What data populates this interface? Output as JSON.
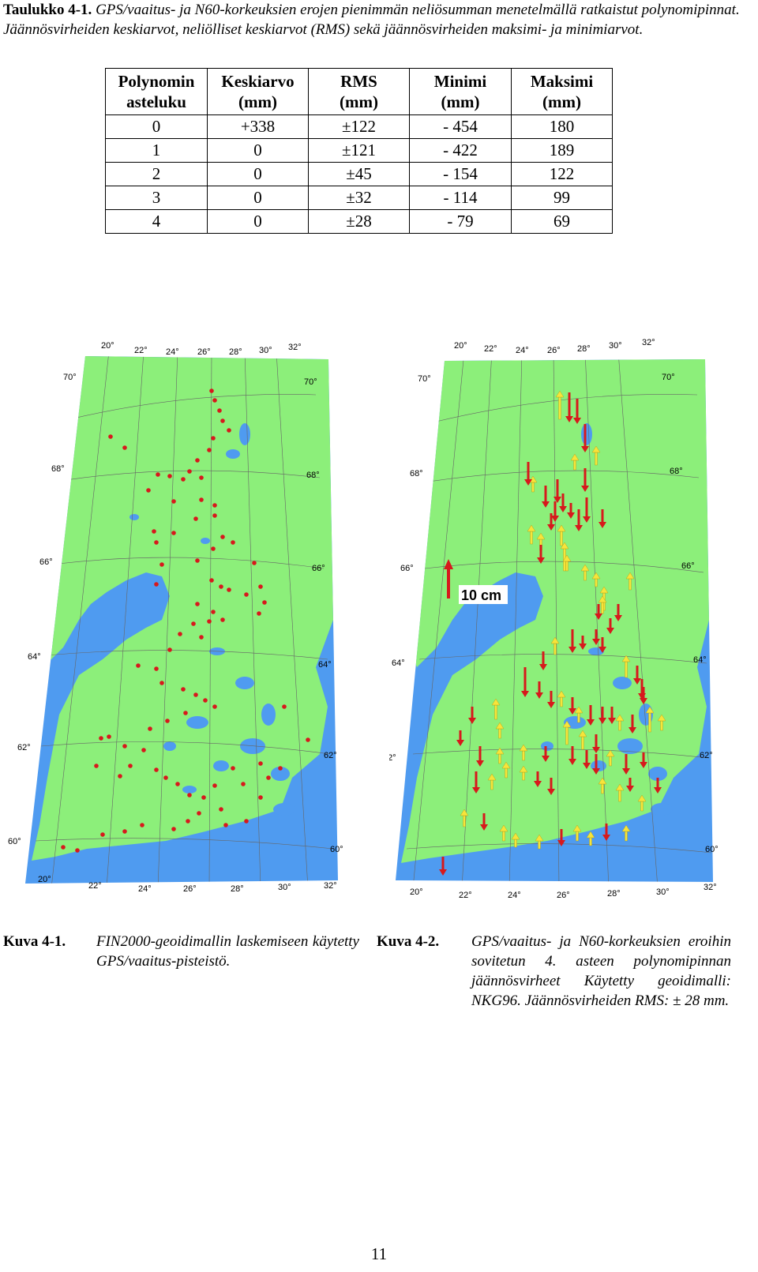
{
  "table_caption": {
    "label": "Taulukko 4-1.",
    "text": "GPS/vaaitus- ja N60-korkeuksien erojen pienimmän neliösumman menetelmällä ratkaistut polynomipinnat. Jäännösvirheiden keskiarvot, neliölliset keskiarvot (RMS) sekä jäännösvirheiden maksimi- ja minimiarvot."
  },
  "table": {
    "headers": [
      [
        "Polynomin",
        "asteluku"
      ],
      [
        "Keskiarvo",
        "(mm)"
      ],
      [
        "RMS",
        "(mm)"
      ],
      [
        "Minimi",
        "(mm)"
      ],
      [
        "Maksimi",
        "(mm)"
      ]
    ],
    "rows": [
      [
        "0",
        "+338",
        "±122",
        "- 454",
        "180"
      ],
      [
        "1",
        "0",
        "±121",
        "- 422",
        "189"
      ],
      [
        "2",
        "0",
        "±45",
        "- 154",
        "122"
      ],
      [
        "3",
        "0",
        "±32",
        "- 114",
        "99"
      ],
      [
        "4",
        "0",
        "±28",
        "- 79",
        "69"
      ]
    ]
  },
  "map_labels": {
    "lon_top": [
      "20°",
      "22°",
      "24°",
      "26°",
      "28°",
      "30°",
      "32°"
    ],
    "lon_bottom": [
      "20°",
      "22°",
      "24°",
      "26°",
      "28°",
      "30°",
      "32°"
    ],
    "lat": [
      "70°",
      "68°",
      "66°",
      "64°",
      "62°",
      "60°"
    ],
    "scale_label": "10 cm"
  },
  "colors": {
    "land": "#8cef7a",
    "water": "#4f9bf0",
    "point": "#d7191c",
    "arrow_down": "#d7191c",
    "arrow_up": "#f7e43a"
  },
  "figure_captions": [
    {
      "label": "Kuva 4-1.",
      "text": "FIN2000-geoidimallin laskemiseen käytetty GPS/vaaitus-pisteistö."
    },
    {
      "label": "Kuva 4-2.",
      "text": "GPS/vaaitus- ja N60-korkeuksien eroihin sovitetun 4. asteen polynomipinnan jäännösvirheet Käytetty geoidimalli: NKG96. Jäännösvirheiden RMS: ± 28 mm."
    }
  ],
  "page_number": "11"
}
